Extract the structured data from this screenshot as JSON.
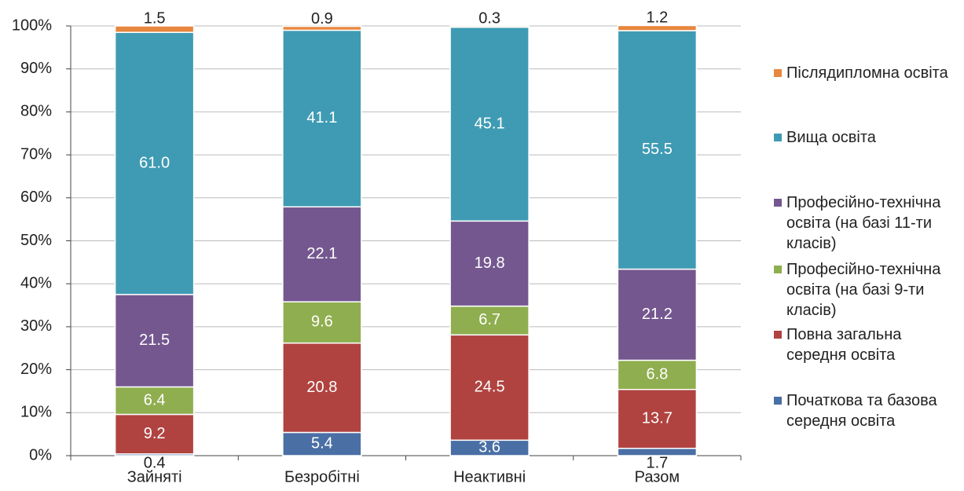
{
  "chart_data": {
    "type": "stacked_bar_100",
    "categories": [
      "Зайняті",
      "Безробітні",
      "Неактивні",
      "Разом"
    ],
    "series": [
      {
        "name": "Початкова та базова середня освіта",
        "color": "#4a6fa5",
        "values": [
          0.4,
          5.4,
          3.6,
          1.7
        ]
      },
      {
        "name": "Повна загальна середня освіта",
        "color": "#b04340",
        "values": [
          9.2,
          20.8,
          24.5,
          13.7
        ]
      },
      {
        "name": "Професійно-технічна освіта (на базі 9-ти класів)",
        "color": "#8fae4f",
        "values": [
          6.4,
          9.6,
          6.7,
          6.8
        ]
      },
      {
        "name": "Професійно-технічна освіта (на базі 11-ти класів)",
        "color": "#74578f",
        "values": [
          21.5,
          22.1,
          19.8,
          21.2
        ]
      },
      {
        "name": "Вища освіта",
        "color": "#3f9bb3",
        "values": [
          61.0,
          41.1,
          45.1,
          55.5
        ],
        "value_labels": [
          "61.0",
          "41.1",
          "45.1",
          "55.5"
        ]
      },
      {
        "name": "Післядипломна освіта",
        "color": "#e8873f",
        "values": [
          1.5,
          0.9,
          0.3,
          1.2
        ]
      }
    ],
    "ylim": [
      0,
      100
    ],
    "yticks": [
      {
        "value": 0,
        "label": "0%"
      },
      {
        "value": 10,
        "label": "10%"
      },
      {
        "value": 20,
        "label": "20%"
      },
      {
        "value": 30,
        "label": "30%"
      },
      {
        "value": 40,
        "label": "40%"
      },
      {
        "value": 50,
        "label": "50%"
      },
      {
        "value": 60,
        "label": "60%"
      },
      {
        "value": 70,
        "label": "70%"
      },
      {
        "value": 80,
        "label": "80%"
      },
      {
        "value": 90,
        "label": "90%"
      },
      {
        "value": 100,
        "label": "100%"
      }
    ],
    "grid": true,
    "legend": "right"
  }
}
